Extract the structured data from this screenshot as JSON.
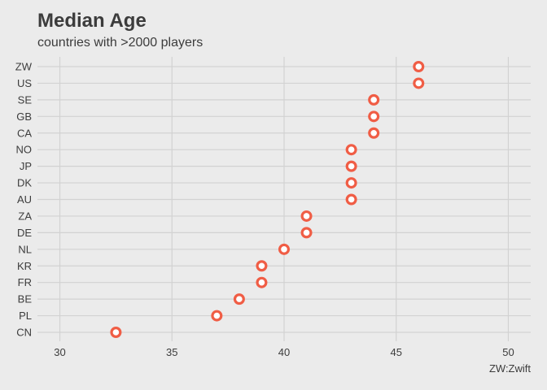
{
  "chart_data": {
    "type": "scatter",
    "title": "Median Age",
    "subtitle": "countries with >2000 players",
    "caption": "ZW:Zwift",
    "xlabel": "",
    "ylabel": "",
    "xlim": [
      29,
      51
    ],
    "xticks": [
      30,
      35,
      40,
      45,
      50
    ],
    "categories": [
      "CN",
      "PL",
      "BE",
      "FR",
      "KR",
      "NL",
      "DE",
      "ZA",
      "AU",
      "DK",
      "JP",
      "NO",
      "CA",
      "GB",
      "SE",
      "US",
      "ZW"
    ],
    "values": [
      32.5,
      37,
      38,
      39,
      39,
      40,
      41,
      41,
      43,
      43,
      43,
      43,
      44,
      44,
      44,
      46,
      46
    ],
    "grid": true,
    "colors": {
      "point_stroke": "#f05d45",
      "point_fill": "#ffffff",
      "background": "#ebebeb",
      "grid": "#d2d2d2"
    }
  }
}
